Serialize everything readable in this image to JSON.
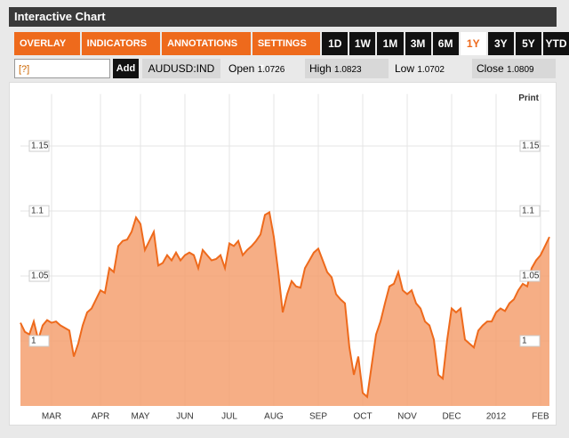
{
  "header": {
    "title": "Interactive Chart"
  },
  "toolbar": {
    "menus": [
      "OVERLAY",
      "INDICATORS",
      "ANNOTATIONS",
      "SETTINGS"
    ],
    "ranges": [
      "1D",
      "1W",
      "1M",
      "3M",
      "6M",
      "1Y",
      "3Y",
      "5Y",
      "YTD"
    ],
    "active_range": "1Y"
  },
  "quote": {
    "input": "[?]",
    "add": "Add",
    "symbol": "AUDUSD:IND",
    "fields": [
      {
        "label": "Open",
        "value": 1.0726
      },
      {
        "label": "High",
        "value": 1.0823
      },
      {
        "label": "Low",
        "value": 1.0702
      },
      {
        "label": "Close",
        "value": 1.0809
      }
    ]
  },
  "print": "Print",
  "chart_data": {
    "type": "area",
    "color": "#f5a070",
    "line_color": "#ee6a1c",
    "grid": true,
    "ylim": [
      0.95,
      1.19
    ],
    "yticks": [
      1,
      1.05,
      1.1,
      1.15
    ],
    "categories": [
      null,
      null,
      null,
      null,
      null,
      null,
      null,
      "MAR",
      null,
      null,
      null,
      null,
      null,
      null,
      null,
      null,
      null,
      null,
      "APR",
      null,
      null,
      null,
      null,
      null,
      null,
      null,
      null,
      "MAY",
      null,
      null,
      null,
      null,
      null,
      null,
      null,
      null,
      null,
      "JUN",
      null,
      null,
      null,
      null,
      null,
      null,
      null,
      null,
      null,
      "JUL",
      null,
      null,
      null,
      null,
      null,
      null,
      null,
      null,
      null,
      "AUG",
      null,
      null,
      null,
      null,
      null,
      null,
      null,
      null,
      null,
      "SEP",
      null,
      null,
      null,
      null,
      null,
      null,
      null,
      null,
      null,
      "OCT",
      null,
      null,
      null,
      null,
      null,
      null,
      null,
      null,
      null,
      "NOV",
      null,
      null,
      null,
      null,
      null,
      null,
      null,
      null,
      null,
      "DEC",
      null,
      null,
      null,
      null,
      null,
      null,
      null,
      null,
      null,
      "2012",
      null,
      null,
      null,
      null,
      null,
      null,
      null,
      null,
      null,
      "FEB",
      null,
      null
    ],
    "values": [
      1.014,
      1.007,
      1.005,
      1.015,
      1.001,
      1.012,
      1.016,
      1.014,
      1.015,
      1.012,
      1.01,
      1.008,
      0.988,
      0.998,
      1.012,
      1.022,
      1.025,
      1.032,
      1.039,
      1.037,
      1.056,
      1.053,
      1.073,
      1.077,
      1.078,
      1.084,
      1.095,
      1.09,
      1.07,
      1.077,
      1.084,
      1.058,
      1.06,
      1.066,
      1.062,
      1.068,
      1.062,
      1.066,
      1.068,
      1.066,
      1.056,
      1.07,
      1.066,
      1.062,
      1.063,
      1.066,
      1.056,
      1.075,
      1.073,
      1.077,
      1.066,
      1.07,
      1.073,
      1.077,
      1.082,
      1.097,
      1.099,
      1.08,
      1.053,
      1.022,
      1.036,
      1.046,
      1.042,
      1.041,
      1.056,
      1.062,
      1.068,
      1.071,
      1.062,
      1.053,
      1.049,
      1.036,
      1.032,
      1.029,
      0.995,
      0.974,
      0.988,
      0.96,
      0.957,
      0.981,
      1.005,
      1.015,
      1.029,
      1.042,
      1.044,
      1.053,
      1.039,
      1.036,
      1.039,
      1.029,
      1.025,
      1.015,
      1.012,
      1.001,
      0.974,
      0.971,
      1.001,
      1.025,
      1.022,
      1.025,
      1.001,
      0.998,
      0.995,
      1.008,
      1.012,
      1.015,
      1.015,
      1.022,
      1.025,
      1.023,
      1.029,
      1.032,
      1.039,
      1.044,
      1.042,
      1.056,
      1.062,
      1.066,
      1.073,
      1.08
    ]
  }
}
